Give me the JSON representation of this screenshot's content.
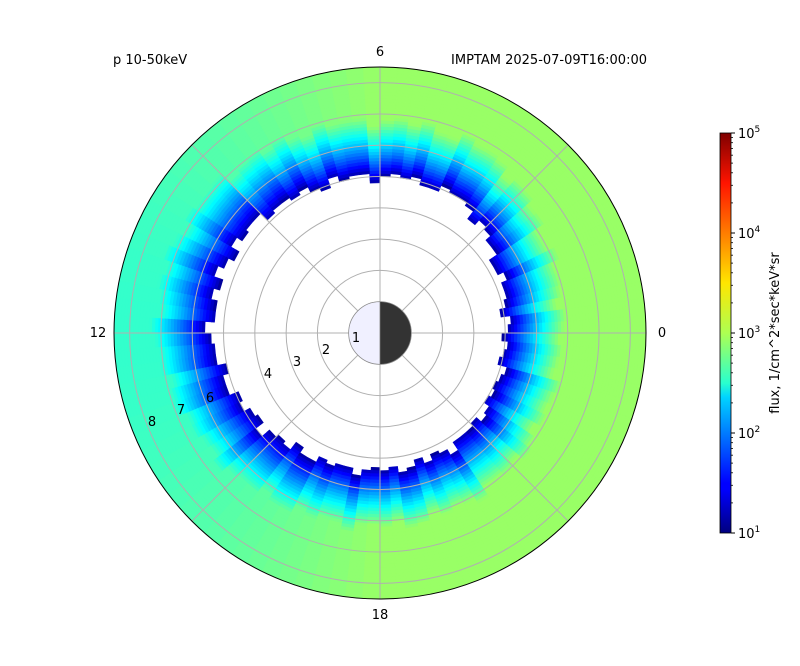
{
  "chart_data": {
    "type": "heatmap",
    "projection": "polar",
    "title_left": "p 10-50keV",
    "title_right": "IMPTAM 2025-07-09T16:00:00",
    "angular_ticks": [
      "0",
      "6",
      "12",
      "18"
    ],
    "radial_ticks": [
      "1",
      "2",
      "3",
      "4",
      "6",
      "7",
      "8"
    ],
    "radial_range": [
      0,
      8.5
    ],
    "grid": true,
    "earth": {
      "radius": 1,
      "day_color": "#f0f0ff",
      "night_color": "#333333"
    },
    "colorbar": {
      "label": "flux, 1/cm^2*sec*keV*sr",
      "scale": "log",
      "min": 10,
      "max": 100000,
      "colormap": "jet",
      "ticks": [
        {
          "base": "10",
          "exp": "1"
        },
        {
          "base": "10",
          "exp": "2"
        },
        {
          "base": "10",
          "exp": "3"
        },
        {
          "base": "10",
          "exp": "4"
        },
        {
          "base": "10",
          "exp": "5"
        }
      ]
    },
    "flux_model": {
      "description_units": "MLT hours, L shells, log10 flux",
      "inner_edge_L_by_mlt": [
        [
          0,
          4.0
        ],
        [
          2,
          4.3
        ],
        [
          4,
          5.0
        ],
        [
          6,
          5.0
        ],
        [
          8,
          5.1
        ],
        [
          10,
          5.4
        ],
        [
          12,
          5.4
        ],
        [
          14,
          4.9
        ],
        [
          16,
          4.5
        ],
        [
          18,
          4.4
        ],
        [
          20,
          4.3
        ],
        [
          22,
          4.1
        ],
        [
          24,
          4.0
        ]
      ],
      "edge_log_flux": 1.1,
      "plateau_log_flux": 3.1,
      "plateau_log_flux_dayside": 2.7,
      "ramp_width_L": 1.8,
      "outer_L": 8.5
    }
  }
}
